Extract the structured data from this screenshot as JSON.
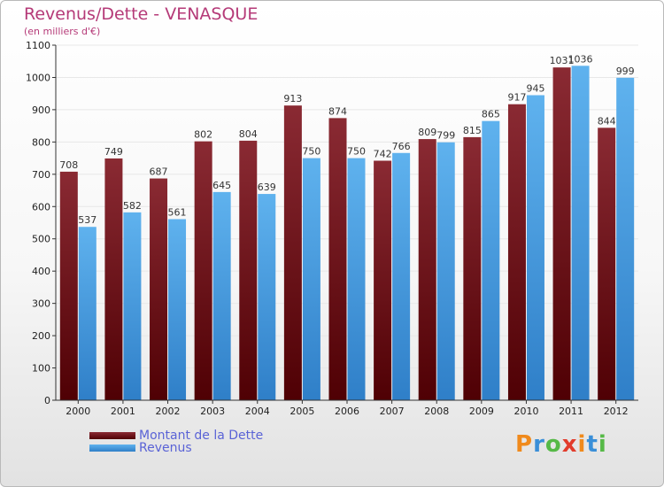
{
  "title": "Revenus/Dette - VENASQUE",
  "subtitle": "(en milliers d'€)",
  "colors": {
    "dette": "#6b0b12",
    "revenus": "#3f9be0",
    "axis": "#333333",
    "grid": "#e8e8e8"
  },
  "legend": [
    {
      "label": "Montant de la Dette",
      "color": "#6b0b12"
    },
    {
      "label": "Revenus",
      "color": "#3f9be0"
    }
  ],
  "logo": {
    "letters": [
      "P",
      "r",
      "o",
      "x",
      "i",
      "t",
      "i"
    ],
    "colors": [
      "#f08a1c",
      "#3a8fd8",
      "#56b947",
      "#e23c2c",
      "#f08a1c",
      "#3a8fd8",
      "#56b947"
    ]
  },
  "chart_data": {
    "type": "bar",
    "categories": [
      "2000",
      "2001",
      "2002",
      "2003",
      "2004",
      "2005",
      "2006",
      "2007",
      "2008",
      "2009",
      "2010",
      "2011",
      "2012"
    ],
    "series": [
      {
        "name": "Montant de la Dette",
        "values": [
          708,
          749,
          687,
          802,
          804,
          913,
          874,
          742,
          809,
          815,
          917,
          1031,
          844
        ]
      },
      {
        "name": "Revenus",
        "values": [
          537,
          582,
          561,
          645,
          639,
          750,
          750,
          766,
          799,
          865,
          945,
          1036,
          999
        ]
      }
    ],
    "ylim": [
      0,
      1100
    ],
    "yticks": [
      0,
      100,
      200,
      300,
      400,
      500,
      600,
      700,
      800,
      900,
      1000,
      1100
    ],
    "grid": true
  }
}
